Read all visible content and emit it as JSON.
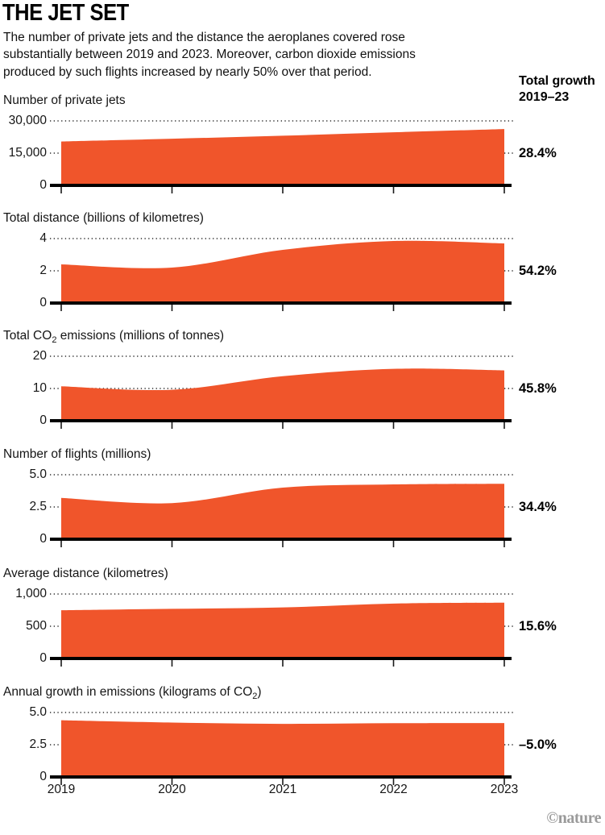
{
  "header": {
    "title": "THE JET SET",
    "description_lines": [
      "The number of private jets and the distance the aeroplanes covered rose",
      "substantially between 2019 and 2023. Moreover, carbon dioxide emissions",
      "produced by such flights increased by nearly 50% over that period."
    ],
    "growth_header_line1": "Total growth",
    "growth_header_line2": "2019–23"
  },
  "x_axis": {
    "years": [
      "2019",
      "2020",
      "2021",
      "2022",
      "2023"
    ]
  },
  "colors": {
    "area": "#F0552B",
    "axis": "#000000",
    "tick": "#1a1a1a",
    "grid_dots": "#2e2e2e",
    "credit": "#9b9b9b"
  },
  "footer": {
    "credit": "©nature"
  },
  "chart_data": [
    {
      "type": "area",
      "title_pre": "Number of private jets",
      "title_sub": "",
      "title_post": "",
      "categories": [
        "2019",
        "2020",
        "2021",
        "2022",
        "2023"
      ],
      "values": [
        20400,
        21700,
        23100,
        24700,
        26200
      ],
      "ylim": [
        0,
        30000
      ],
      "yticks": [
        "30,000",
        "15,000",
        "0"
      ],
      "grid": "dotted",
      "growth": "28.4%"
    },
    {
      "type": "area",
      "title_pre": "Total distance (billions of kilometres)",
      "title_sub": "",
      "title_post": "",
      "categories": [
        "2019",
        "2020",
        "2021",
        "2022",
        "2023"
      ],
      "values": [
        2.4,
        2.2,
        3.3,
        3.85,
        3.7
      ],
      "ylim": [
        0,
        4
      ],
      "yticks": [
        "4",
        "2",
        "0"
      ],
      "grid": "dotted",
      "growth": "54.2%"
    },
    {
      "type": "area",
      "title_pre": "Total CO",
      "title_sub": "2",
      "title_post": " emissions (millions of tonnes)",
      "categories": [
        "2019",
        "2020",
        "2021",
        "2022",
        "2023"
      ],
      "values": [
        10.7,
        9.6,
        13.8,
        16.1,
        15.6
      ],
      "ylim": [
        0,
        20
      ],
      "yticks": [
        "20",
        "10",
        "0"
      ],
      "grid": "dotted",
      "growth": "45.8%"
    },
    {
      "type": "area",
      "title_pre": "Number of flights (millions)",
      "title_sub": "",
      "title_post": "",
      "categories": [
        "2019",
        "2020",
        "2021",
        "2022",
        "2023"
      ],
      "values": [
        3.2,
        2.8,
        4.0,
        4.25,
        4.3
      ],
      "ylim": [
        0,
        5
      ],
      "yticks": [
        "5.0",
        "2.5",
        "0"
      ],
      "grid": "dotted",
      "growth": "34.4%"
    },
    {
      "type": "area",
      "title_pre": "Average distance (kilometres)",
      "title_sub": "",
      "title_post": "",
      "categories": [
        "2019",
        "2020",
        "2021",
        "2022",
        "2023"
      ],
      "values": [
        748,
        770,
        792,
        852,
        865
      ],
      "ylim": [
        0,
        1000
      ],
      "yticks": [
        "1,000",
        "500",
        "0"
      ],
      "grid": "dotted",
      "growth": "15.6%"
    },
    {
      "type": "area",
      "title_pre": "Annual growth in emissions (kilograms of CO",
      "title_sub": "2",
      "title_post": ")",
      "categories": [
        "2019",
        "2020",
        "2021",
        "2022",
        "2023"
      ],
      "values": [
        4.4,
        4.22,
        4.12,
        4.17,
        4.18
      ],
      "ylim": [
        0,
        5
      ],
      "yticks": [
        "5.0",
        "2.5",
        "0"
      ],
      "grid": "dotted",
      "growth": "–5.0%"
    }
  ]
}
